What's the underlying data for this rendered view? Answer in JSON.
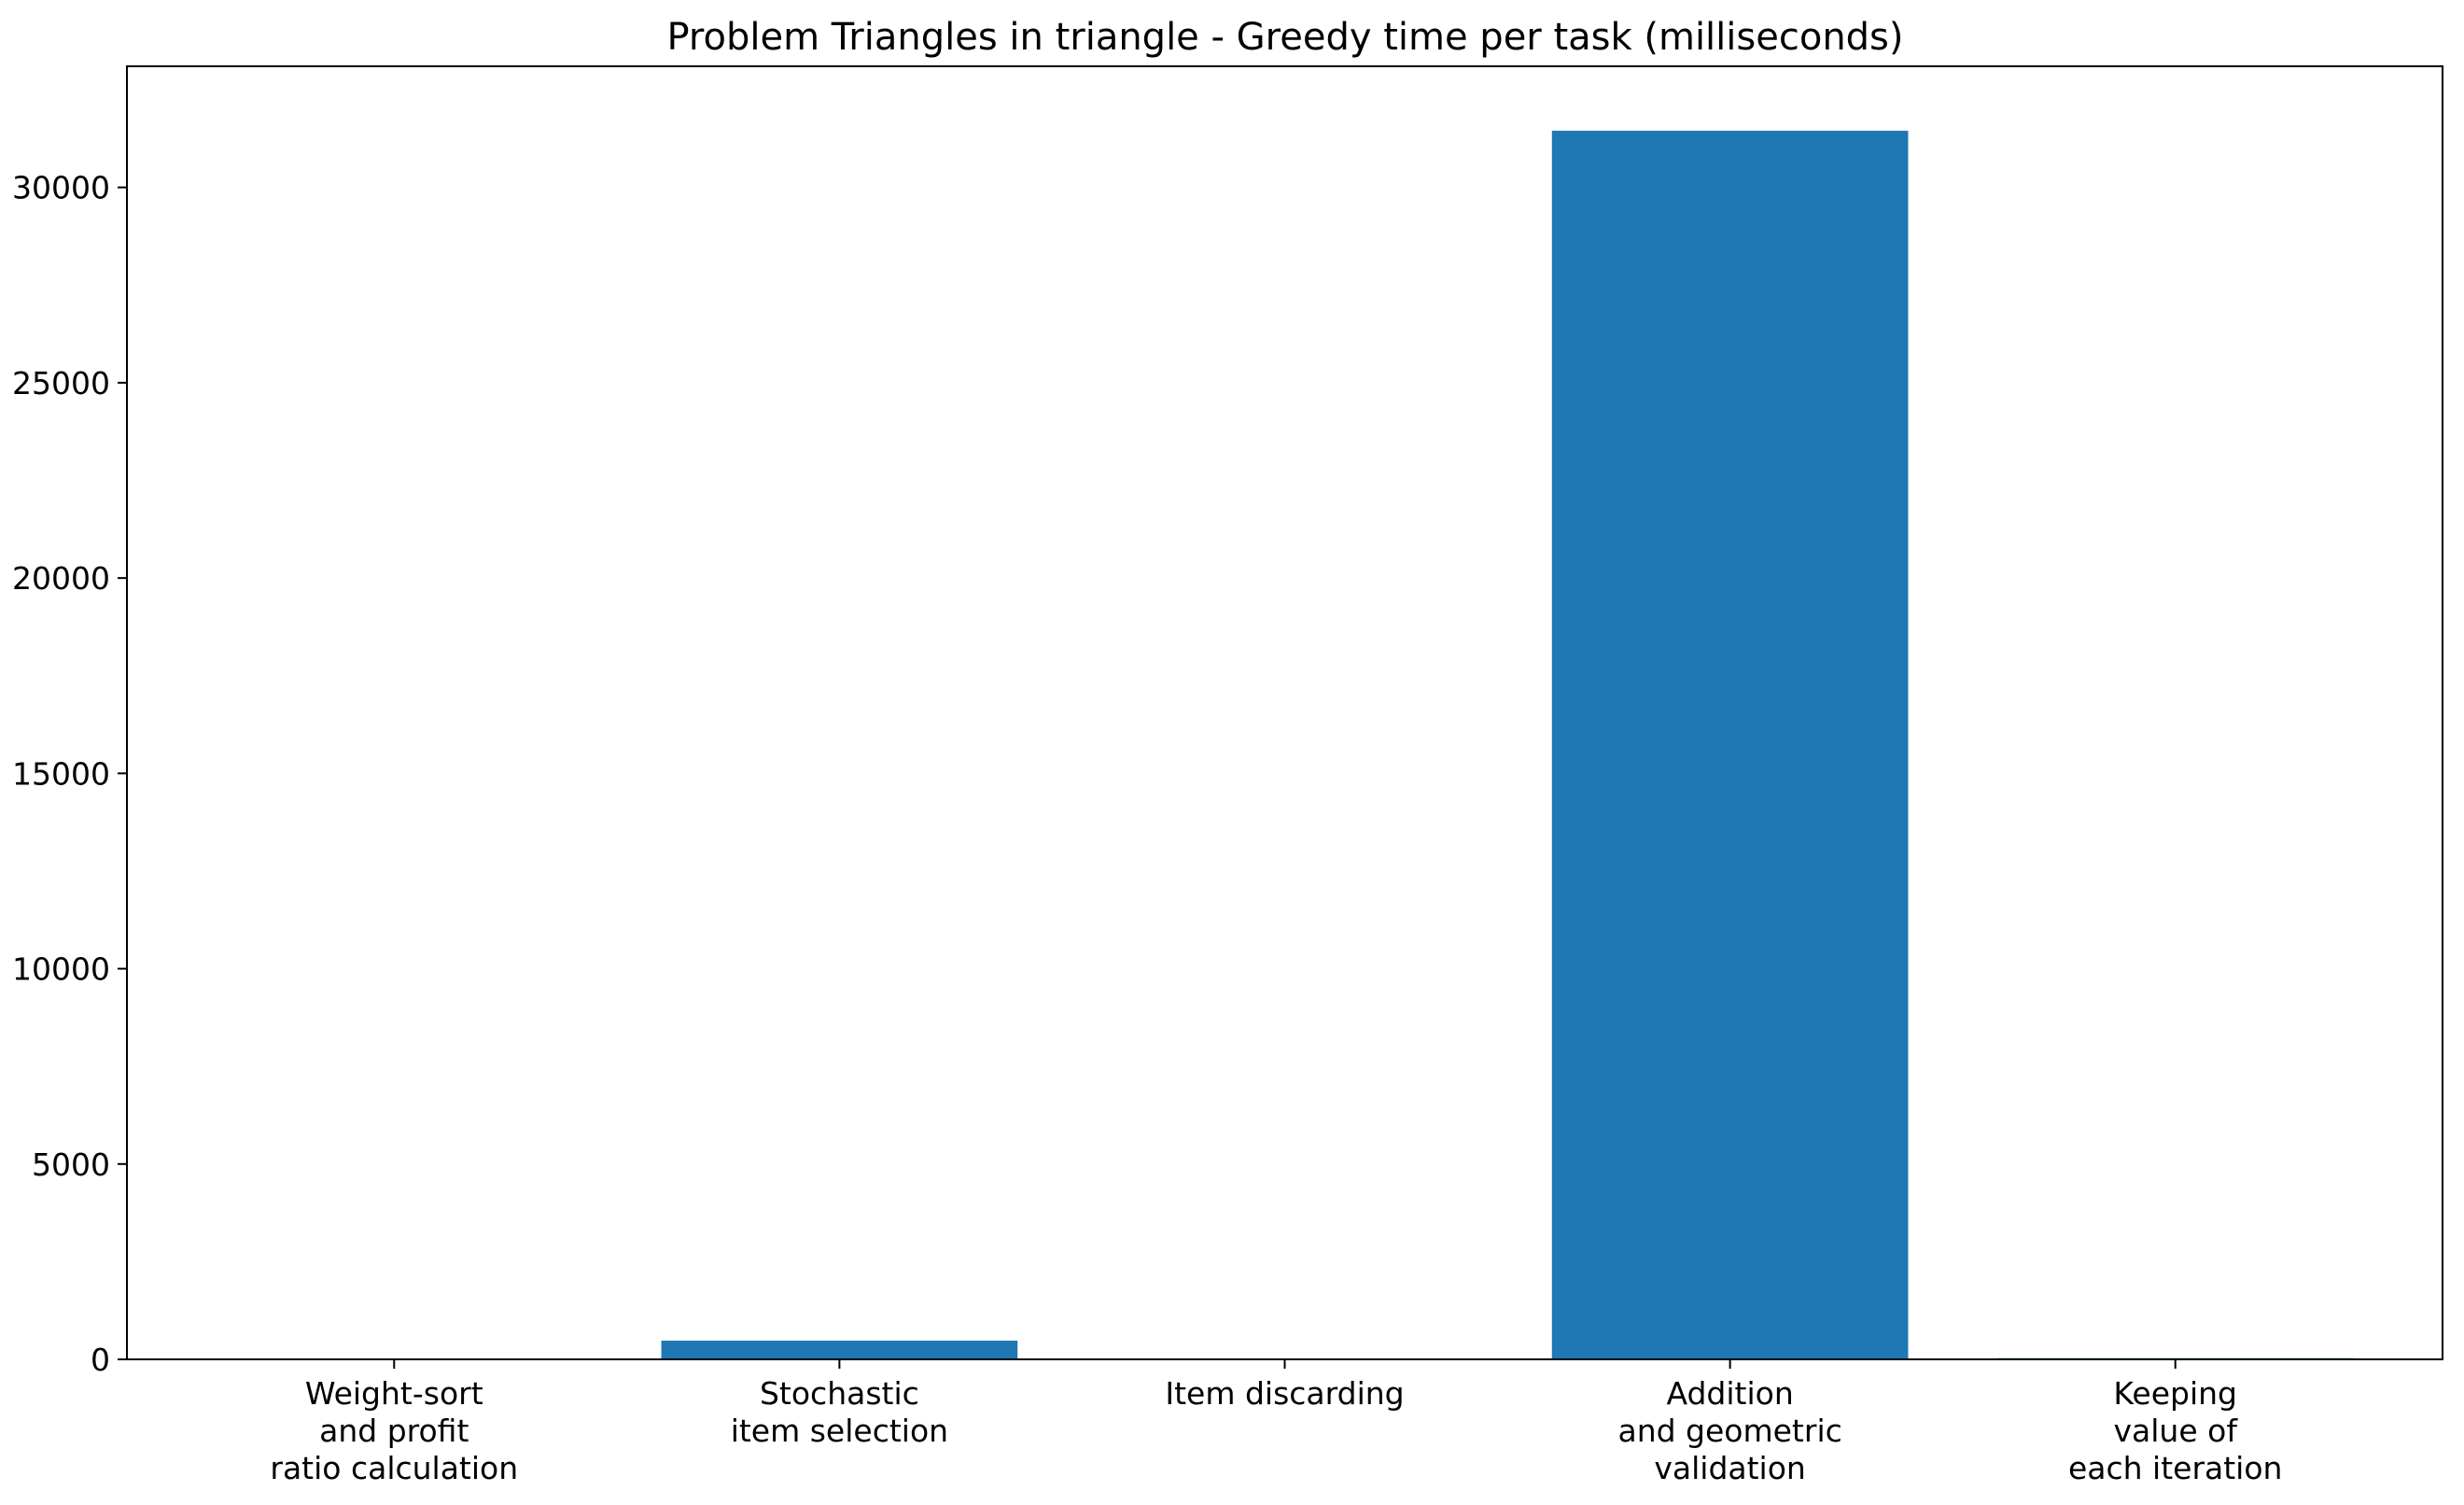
{
  "chart_data": {
    "type": "bar",
    "title": "Problem Triangles in triangle - Greedy time per task (milliseconds)",
    "xlabel": "",
    "ylabel": "",
    "categories": [
      [
        "Weight-sort",
        "and profit",
        "ratio calculation"
      ],
      [
        "Stochastic",
        "item selection"
      ],
      [
        "Item discarding"
      ],
      [
        "Addition",
        "and geometric",
        "validation"
      ],
      [
        "Keeping",
        "value of",
        "each iteration"
      ]
    ],
    "values": [
      5,
      480,
      3,
      31450,
      30
    ],
    "ylim": [
      0,
      33100
    ],
    "yticks": [
      0,
      5000,
      10000,
      15000,
      20000,
      25000,
      30000
    ],
    "grid": false,
    "legend": "none",
    "bar_color": "#1f77b4"
  }
}
